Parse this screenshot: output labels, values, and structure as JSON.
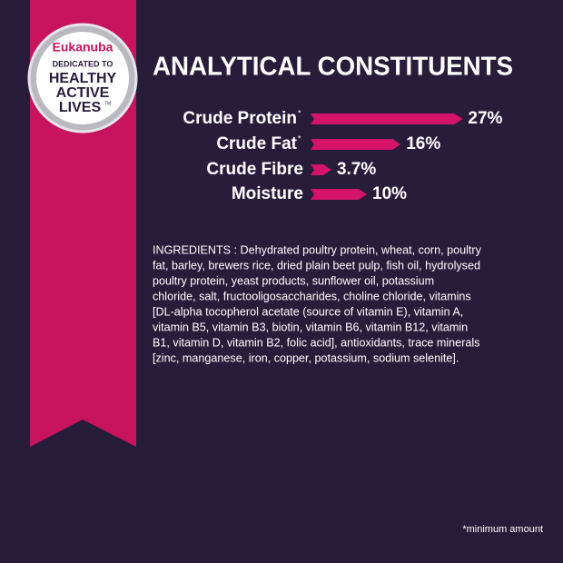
{
  "badge": {
    "brand": "Eukanuba",
    "tagline": "DEDICATED TO",
    "lines": [
      "HEALTHY",
      "ACTIVE",
      "LIVES"
    ],
    "trademark": "TM"
  },
  "chart_data": {
    "type": "bar",
    "orientation": "horizontal",
    "title": "ANALYTICAL CONSTITUENTS",
    "categories": [
      "Crude Protein",
      "Crude Fat",
      "Crude Fibre",
      "Moisture"
    ],
    "notes": [
      "*",
      "*",
      null,
      null
    ],
    "values": [
      27,
      16,
      3.7,
      10
    ],
    "value_labels": [
      "27%",
      "16%",
      "3.7%",
      "10%"
    ],
    "color": "#d3146a"
  },
  "ingredients": [
    "INGREDIENTS : Dehydrated poultry protein, wheat, corn, poultry",
    "fat, barley, brewers rice, dried plain beet pulp, fish oil, hydrolysed",
    "poultry protein, yeast products, sunflower oil, potassium",
    "chloride, salt, fructooligosaccharides, choline chloride, vitamins",
    "[DL-alpha tocopherol acetate (source of vitamin E), vitamin A,",
    "vitamin B5, vitamin B3, biotin, vitamin B6, vitamin B12, vitamin",
    "B1, vitamin D, vitamin B2, folic acid], antioxidants, trace minerals",
    "[zinc, manganese, iron, copper, potassium, sodium selenite]."
  ],
  "footnote": "*minimum amount"
}
